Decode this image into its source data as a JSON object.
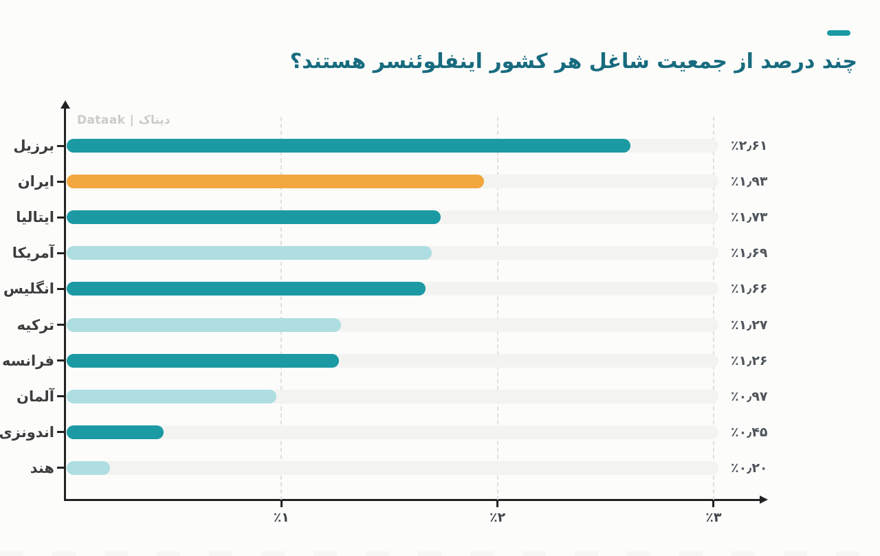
{
  "page": {
    "background": "#fcfcfb"
  },
  "header": {
    "title": "چند درصد از جمعیت شاغل هر کشور اینفلوئنسر هستند؟",
    "title_color": "#186b7e",
    "accent_dash_color": "#1a9aa2"
  },
  "watermark": {
    "text": "Dataak | دیتاک"
  },
  "colors": {
    "dark_teal": "#1b9aa3",
    "light_teal": "#aedee2",
    "highlight_orange": "#f2a73e",
    "axis": "#222222",
    "gridline": "#dedede",
    "bar_track": "#f3f3f1",
    "category_label": "#3d3d3d",
    "value_label": "#4e555b"
  },
  "chart_data": {
    "type": "bar",
    "orientation": "horizontal",
    "title": "چند درصد از جمعیت شاغل هر کشور اینفلوئنسر هستند؟",
    "categories": [
      "برزیل",
      "ایران",
      "ایتالیا",
      "آمریکا",
      "انگلیس",
      "ترکیه",
      "فرانسه",
      "آلمان",
      "اندونزی",
      "هند"
    ],
    "values": [
      2.61,
      1.93,
      1.73,
      1.69,
      1.66,
      1.27,
      1.26,
      0.97,
      0.45,
      0.2
    ],
    "value_labels": [
      "٪۲٫۶۱",
      "٪۱٫۹۳",
      "٪۱٫۷۳",
      "٪۱٫۶۹",
      "٪۱٫۶۶",
      "٪۱٫۲۷",
      "٪۱٫۲۶",
      "٪۰٫۹۷",
      "٪۰٫۴۵",
      "٪۰٫۲۰"
    ],
    "bar_colors": [
      "#1b9aa3",
      "#f2a73e",
      "#1b9aa3",
      "#aedee2",
      "#1b9aa3",
      "#aedee2",
      "#1b9aa3",
      "#aedee2",
      "#1b9aa3",
      "#aedee2"
    ],
    "highlight_category": "ایران",
    "x_ticks": [
      1,
      2,
      3
    ],
    "x_tick_labels": [
      "٪۱",
      "٪۲",
      "٪۳"
    ],
    "xlim": [
      0,
      3.25
    ],
    "xlabel": "",
    "ylabel": "",
    "grid": "vertical-dashed",
    "legend": "none"
  }
}
